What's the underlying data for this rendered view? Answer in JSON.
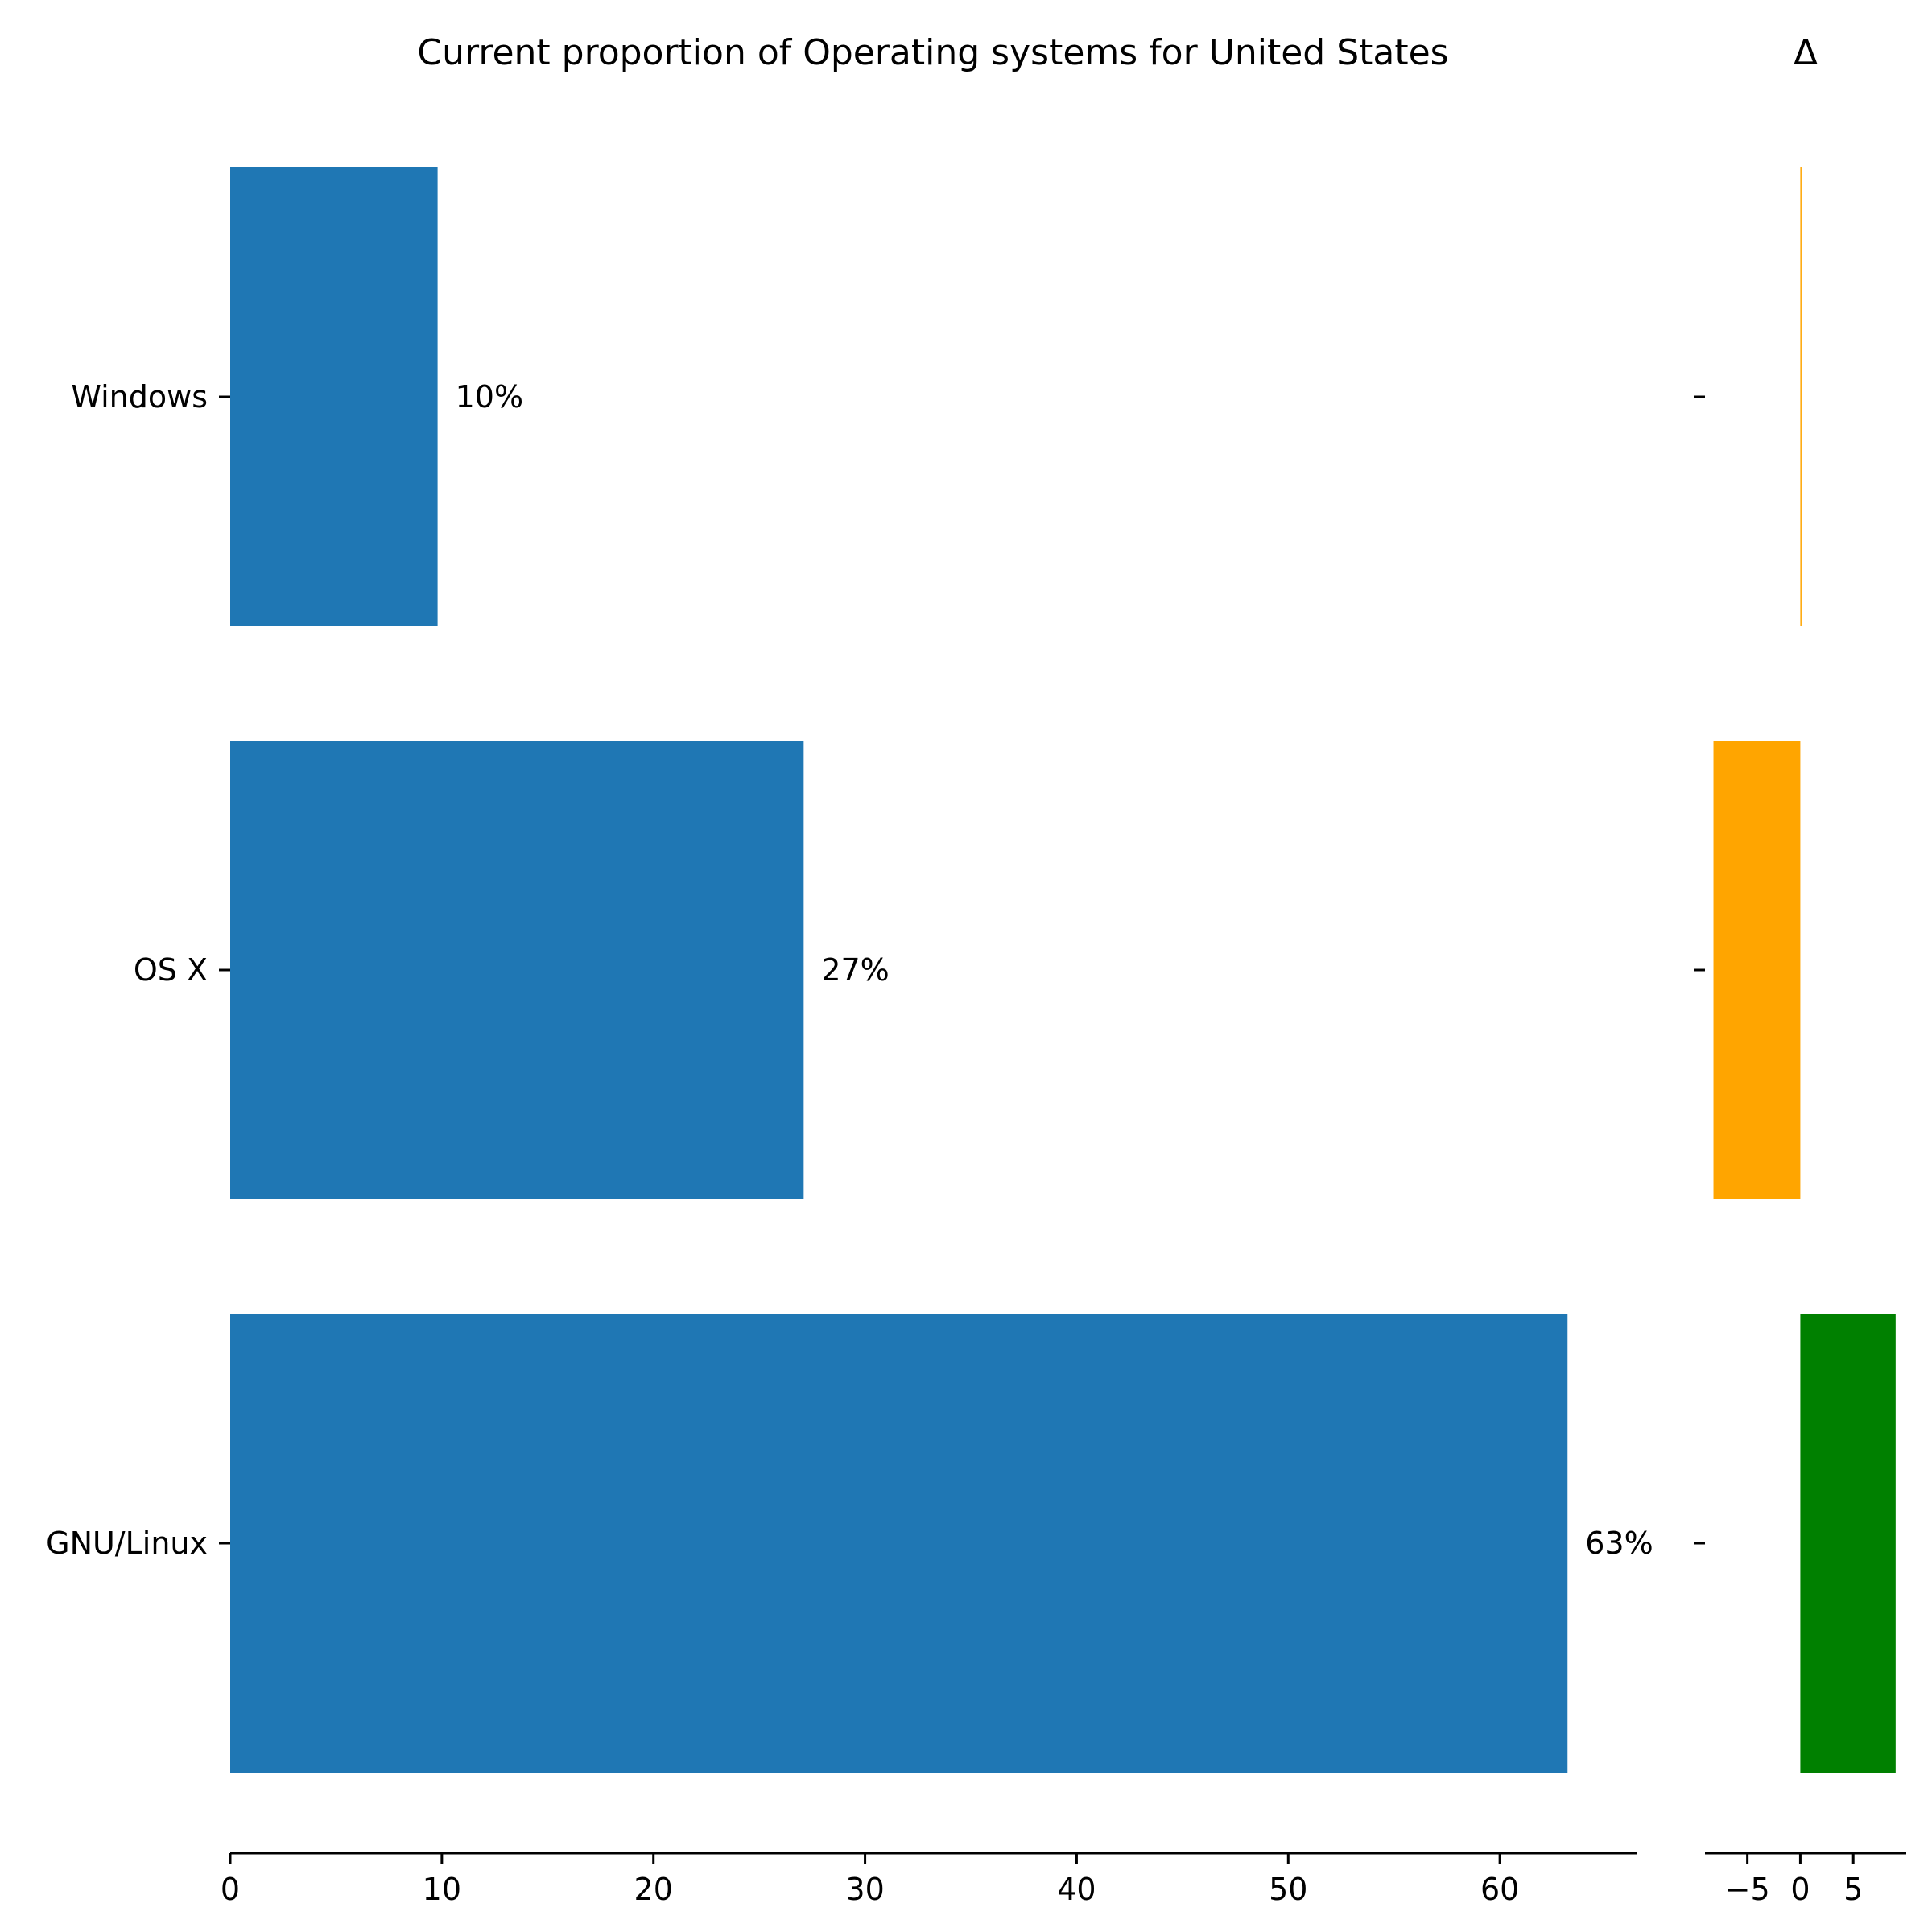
{
  "chart_data": [
    {
      "type": "bar",
      "orientation": "horizontal",
      "title": "Current proportion of Operating systems for United States",
      "categories": [
        "Windows",
        "OS X",
        "GNU/Linux"
      ],
      "values": [
        9.8,
        27.1,
        63.2
      ],
      "value_labels": [
        "10%",
        "27%",
        "63%"
      ],
      "bar_color": "#1f77b4",
      "xlim": [
        0,
        66.5
      ],
      "xticks": [
        0,
        10,
        20,
        30,
        40,
        50,
        60
      ],
      "xtick_labels": [
        "0",
        "10",
        "20",
        "30",
        "40",
        "50",
        "60"
      ],
      "grid": false
    },
    {
      "type": "bar",
      "orientation": "horizontal",
      "title": "Δ",
      "categories": [
        "Windows",
        "OS X",
        "GNU/Linux"
      ],
      "values": [
        0.05,
        -8.2,
        9.0
      ],
      "colors": [
        "#ffa500",
        "#ffa500",
        "#008000"
      ],
      "xlim": [
        -9,
        10
      ],
      "xticks": [
        -5,
        0,
        5
      ],
      "xtick_labels": [
        "−5",
        "0",
        "5"
      ],
      "grid": false
    }
  ]
}
